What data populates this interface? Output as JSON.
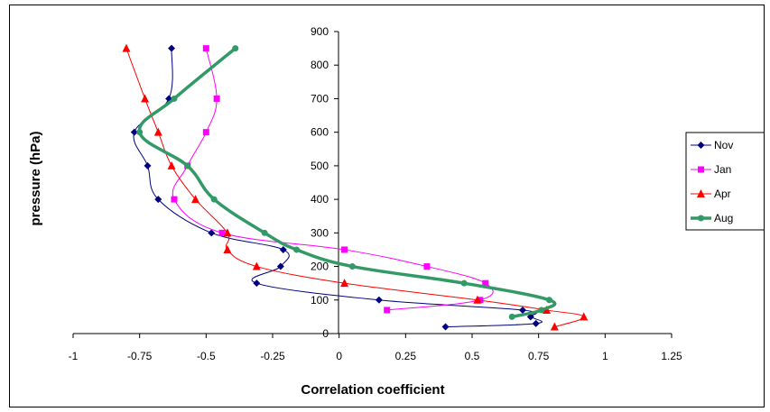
{
  "chart_data": {
    "type": "line",
    "title": "",
    "xlabel": "Correlation coefficient",
    "ylabel": "pressure (hPa)",
    "xlim": [
      -1,
      1.25
    ],
    "ylim": [
      0,
      900
    ],
    "x_ticks": [
      -1,
      -0.75,
      -0.5,
      -0.25,
      0,
      0.25,
      0.5,
      0.75,
      1,
      1.25
    ],
    "x_tick_labels": [
      "-1",
      "-0.75",
      "-0.5",
      "-0.25",
      "0",
      "0.25",
      "0.5",
      "0.75",
      "1",
      "1.25"
    ],
    "y_ticks": [
      0,
      100,
      200,
      300,
      400,
      500,
      600,
      700,
      800,
      900
    ],
    "y_tick_labels": [
      "0",
      "100",
      "200",
      "300",
      "400",
      "500",
      "600",
      "700",
      "800",
      "900"
    ],
    "grid": false,
    "legend_position": "right",
    "series": [
      {
        "name": "Nov",
        "color": "#000080",
        "marker": "diamond",
        "line_width": 1,
        "points": [
          {
            "x": -0.63,
            "y": 850
          },
          {
            "x": -0.64,
            "y": 700
          },
          {
            "x": -0.77,
            "y": 600
          },
          {
            "x": -0.72,
            "y": 500
          },
          {
            "x": -0.68,
            "y": 400
          },
          {
            "x": -0.48,
            "y": 300
          },
          {
            "x": -0.21,
            "y": 250
          },
          {
            "x": -0.22,
            "y": 200
          },
          {
            "x": -0.31,
            "y": 150
          },
          {
            "x": 0.15,
            "y": 100
          },
          {
            "x": 0.69,
            "y": 70
          },
          {
            "x": 0.72,
            "y": 50
          },
          {
            "x": 0.74,
            "y": 30
          },
          {
            "x": 0.4,
            "y": 20
          }
        ]
      },
      {
        "name": "Jan",
        "color": "#FF00FF",
        "marker": "square",
        "line_width": 1,
        "points": [
          {
            "x": -0.5,
            "y": 850
          },
          {
            "x": -0.46,
            "y": 700
          },
          {
            "x": -0.5,
            "y": 600
          },
          {
            "x": -0.57,
            "y": 500
          },
          {
            "x": -0.62,
            "y": 400
          },
          {
            "x": -0.44,
            "y": 300
          },
          {
            "x": 0.02,
            "y": 250
          },
          {
            "x": 0.33,
            "y": 200
          },
          {
            "x": 0.55,
            "y": 150
          },
          {
            "x": 0.53,
            "y": 100
          },
          {
            "x": 0.18,
            "y": 70
          }
        ]
      },
      {
        "name": "Apr",
        "color": "#FF0000",
        "marker": "triangle",
        "line_width": 1,
        "points": [
          {
            "x": -0.8,
            "y": 850
          },
          {
            "x": -0.73,
            "y": 700
          },
          {
            "x": -0.68,
            "y": 600
          },
          {
            "x": -0.63,
            "y": 500
          },
          {
            "x": -0.54,
            "y": 400
          },
          {
            "x": -0.42,
            "y": 300
          },
          {
            "x": -0.42,
            "y": 250
          },
          {
            "x": -0.31,
            "y": 200
          },
          {
            "x": 0.02,
            "y": 150
          },
          {
            "x": 0.52,
            "y": 100
          },
          {
            "x": 0.78,
            "y": 70
          },
          {
            "x": 0.92,
            "y": 50
          },
          {
            "x": 0.81,
            "y": 20
          }
        ]
      },
      {
        "name": "Aug",
        "color": "#339966",
        "marker": "circle",
        "line_width": 3.5,
        "points": [
          {
            "x": -0.39,
            "y": 850
          },
          {
            "x": -0.62,
            "y": 700
          },
          {
            "x": -0.75,
            "y": 600
          },
          {
            "x": -0.57,
            "y": 500
          },
          {
            "x": -0.47,
            "y": 400
          },
          {
            "x": -0.28,
            "y": 300
          },
          {
            "x": -0.16,
            "y": 250
          },
          {
            "x": 0.05,
            "y": 200
          },
          {
            "x": 0.47,
            "y": 150
          },
          {
            "x": 0.79,
            "y": 100
          },
          {
            "x": 0.76,
            "y": 70
          },
          {
            "x": 0.65,
            "y": 50
          }
        ]
      }
    ]
  }
}
